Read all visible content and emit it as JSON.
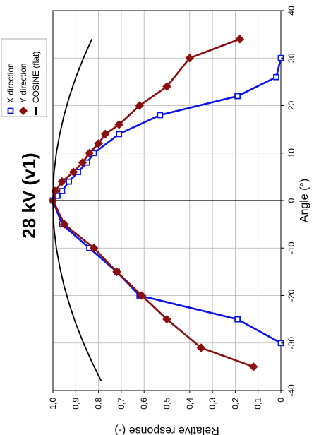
{
  "chart_data": {
    "type": "line",
    "title": "28 kV (v1)",
    "xlabel": "Angle (°)",
    "ylabel": "Relative response (-)",
    "xlim": [
      -40,
      40
    ],
    "ylim": [
      0,
      1.0
    ],
    "x_ticks": [
      -40,
      -30,
      -20,
      -10,
      0,
      10,
      20,
      30,
      40
    ],
    "x_tick_labels": [
      "-40",
      "-30",
      "-20",
      "-10",
      "0",
      "10",
      "20",
      "30",
      "40"
    ],
    "y_ticks": [
      0,
      0.1,
      0.2,
      0.3,
      0.4,
      0.5,
      0.6,
      0.7,
      0.8,
      0.9,
      1.0
    ],
    "y_tick_labels": [
      "0",
      "0,1",
      "0,2",
      "0,3",
      "0,4",
      "0,5",
      "0,6",
      "0,7",
      "0,8",
      "0,9",
      "1,0"
    ],
    "grid": true,
    "orientation": "rotated 90° counter-clockwise",
    "legend_position": "top-left",
    "series": [
      {
        "name": "X direction",
        "color": "#0a14e6",
        "marker": "open-square",
        "x": [
          -30,
          -25,
          -20,
          -15,
          -10,
          -5,
          0,
          1,
          2,
          4,
          6,
          8,
          10,
          14,
          18,
          22,
          26,
          30
        ],
        "y": [
          0.0,
          0.19,
          0.62,
          0.72,
          0.84,
          0.96,
          1.0,
          0.98,
          0.96,
          0.93,
          0.89,
          0.85,
          0.82,
          0.71,
          0.53,
          0.19,
          0.02,
          0.0
        ]
      },
      {
        "name": "Y direction",
        "color": "#8b0e0e",
        "marker": "filled-diamond",
        "x": [
          -35,
          -31,
          -25,
          -20,
          -15,
          -10,
          -5,
          0,
          2,
          4,
          6,
          8,
          10,
          12,
          14,
          16,
          20,
          24,
          30,
          34
        ],
        "y": [
          0.12,
          0.35,
          0.5,
          0.61,
          0.72,
          0.82,
          0.95,
          1.0,
          0.99,
          0.96,
          0.91,
          0.87,
          0.84,
          0.8,
          0.77,
          0.71,
          0.62,
          0.5,
          0.4,
          0.18
        ]
      },
      {
        "name": "COSINE (flat)",
        "color": "#000000",
        "marker": "none",
        "x": [
          -38,
          -34,
          -30,
          -26,
          -22,
          -18,
          -14,
          -10,
          -6,
          -2,
          0,
          2,
          6,
          10,
          14,
          18,
          22,
          26,
          30,
          34
        ],
        "y": [
          0.788,
          0.829,
          0.866,
          0.899,
          0.927,
          0.951,
          0.97,
          0.985,
          0.995,
          0.999,
          1.0,
          0.999,
          0.995,
          0.985,
          0.97,
          0.951,
          0.927,
          0.899,
          0.866,
          0.829
        ]
      }
    ]
  }
}
